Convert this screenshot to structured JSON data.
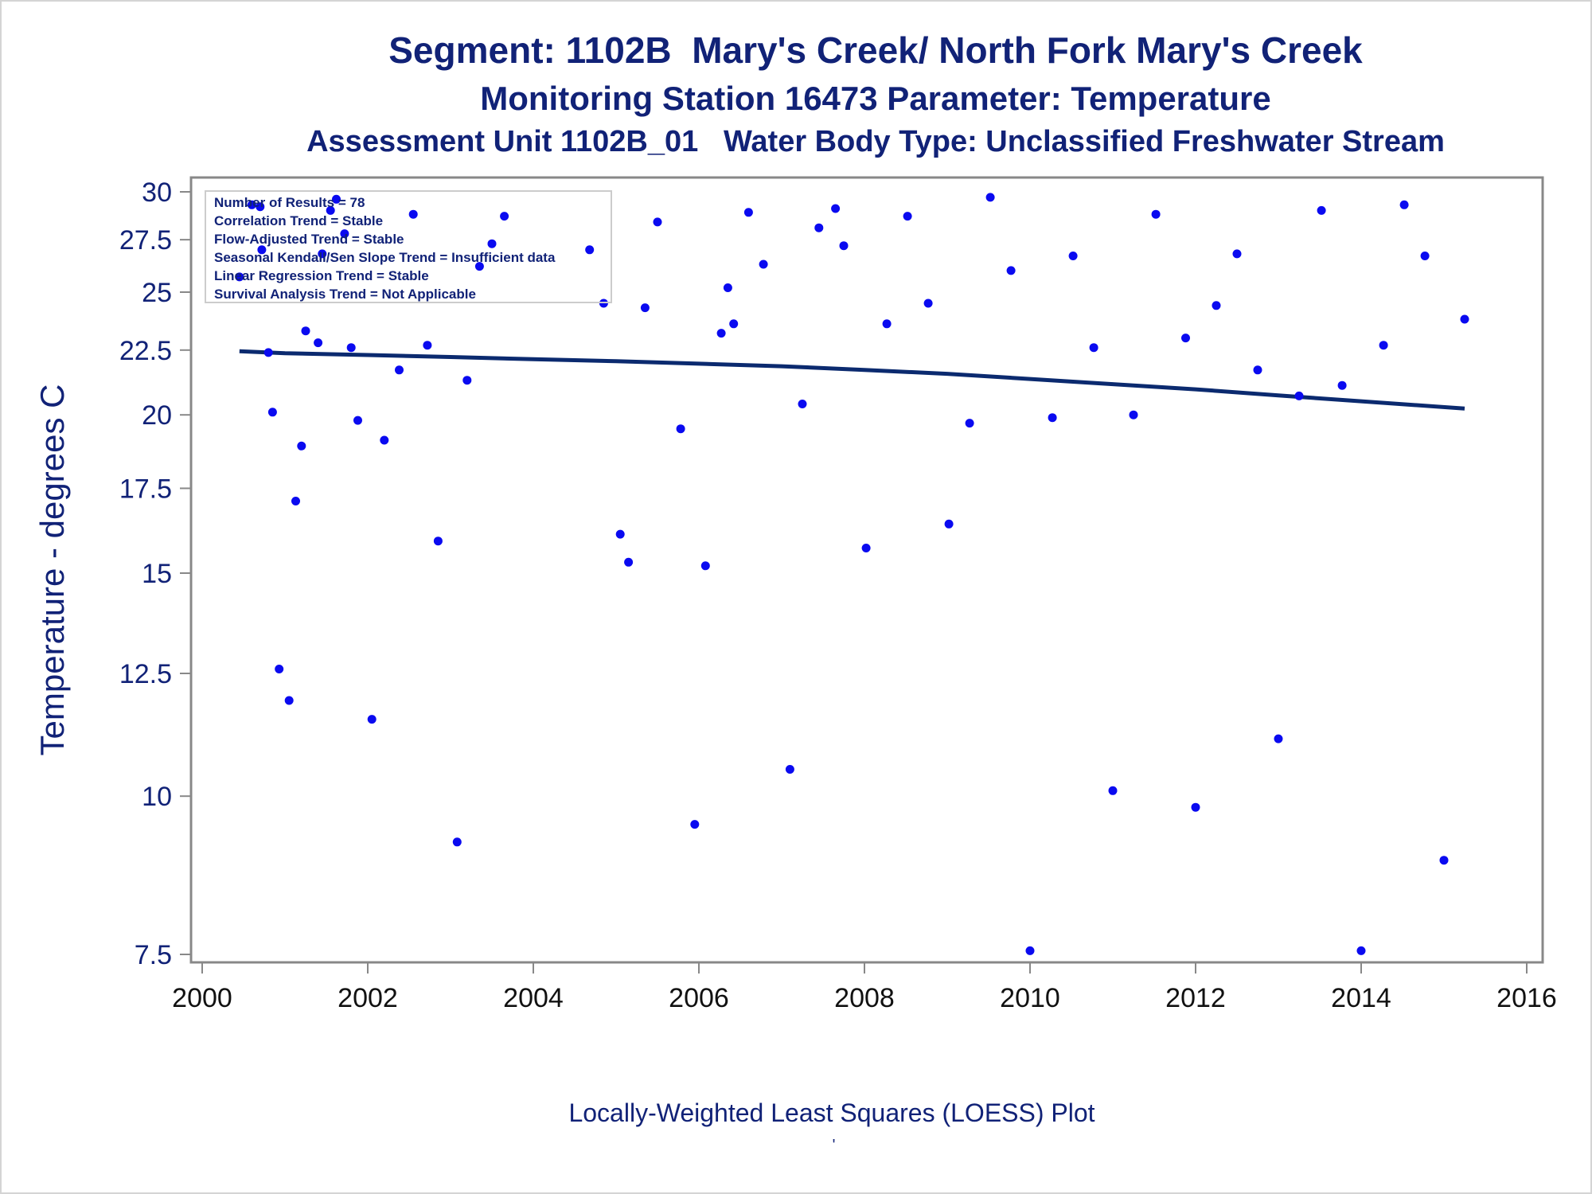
{
  "titles": {
    "line1": "Segment: 1102B  Mary's Creek/ North Fork Mary's Creek",
    "line2": "Monitoring Station 16473 Parameter: Temperature",
    "line3": "Assessment Unit 1102B_01   Water Body Type: Unclassified Freshwater Stream"
  },
  "footnote": "Locally-Weighted Least Squares (LOESS) Plot",
  "footnote_mark": "'",
  "colors": {
    "text": "#112277",
    "points": "#0a0af0",
    "loess": "#0b2a6f",
    "axis": "#888888"
  },
  "chart_data": {
    "type": "scatter",
    "ylabel": "Temperature - degrees C",
    "xlabel": "",
    "xlim": [
      2000,
      2016
    ],
    "ylim": [
      7.5,
      30
    ],
    "yscale": "log",
    "x_ticks": [
      2000,
      2002,
      2004,
      2006,
      2008,
      2010,
      2012,
      2014,
      2016
    ],
    "y_ticks": [
      7.5,
      10,
      12.5,
      15,
      17.5,
      20,
      22.5,
      25,
      27.5,
      30
    ],
    "y_tick_labels": [
      "7.5",
      "10",
      "12.5",
      "15",
      "17.5",
      "20",
      "22.5",
      "25",
      "27.5",
      "30"
    ],
    "grid": false,
    "legend_position": "top-left",
    "stats_box": [
      "Number of Results = 78",
      "Correlation Trend = Stable",
      "Flow-Adjusted Trend = Stable",
      "Seasonal Kendall/Sen Slope Trend = Insufficient data",
      "Linear Regression Trend = Stable",
      "Survival Analysis Trend = Not Applicable"
    ],
    "points": [
      [
        2000.45,
        25.7
      ],
      [
        2000.6,
        29.3
      ],
      [
        2000.7,
        29.2
      ],
      [
        2000.72,
        27.0
      ],
      [
        2000.8,
        22.4
      ],
      [
        2000.85,
        20.1
      ],
      [
        2000.93,
        12.6
      ],
      [
        2001.05,
        11.9
      ],
      [
        2001.13,
        17.1
      ],
      [
        2001.2,
        18.9
      ],
      [
        2001.25,
        23.3
      ],
      [
        2001.4,
        22.8
      ],
      [
        2001.45,
        26.8
      ],
      [
        2001.55,
        29.0
      ],
      [
        2001.62,
        29.6
      ],
      [
        2001.72,
        27.8
      ],
      [
        2001.8,
        22.6
      ],
      [
        2001.88,
        19.8
      ],
      [
        2002.05,
        11.5
      ],
      [
        2002.2,
        19.1
      ],
      [
        2002.38,
        21.7
      ],
      [
        2002.55,
        28.8
      ],
      [
        2002.72,
        22.7
      ],
      [
        2002.85,
        15.9
      ],
      [
        2003.08,
        9.2
      ],
      [
        2003.2,
        21.3
      ],
      [
        2003.35,
        26.2
      ],
      [
        2003.5,
        27.3
      ],
      [
        2003.65,
        28.7
      ],
      [
        2004.68,
        27.0
      ],
      [
        2004.85,
        24.5
      ],
      [
        2005.05,
        16.1
      ],
      [
        2005.15,
        15.3
      ],
      [
        2005.35,
        24.3
      ],
      [
        2005.5,
        28.4
      ],
      [
        2005.78,
        19.5
      ],
      [
        2005.95,
        9.5
      ],
      [
        2006.08,
        15.2
      ],
      [
        2006.27,
        23.2
      ],
      [
        2006.35,
        25.2
      ],
      [
        2006.42,
        23.6
      ],
      [
        2006.6,
        28.9
      ],
      [
        2006.78,
        26.3
      ],
      [
        2007.1,
        10.5
      ],
      [
        2007.25,
        20.4
      ],
      [
        2007.45,
        28.1
      ],
      [
        2007.65,
        29.1
      ],
      [
        2007.75,
        27.2
      ],
      [
        2008.02,
        15.7
      ],
      [
        2008.27,
        23.6
      ],
      [
        2008.52,
        28.7
      ],
      [
        2008.77,
        24.5
      ],
      [
        2009.02,
        16.4
      ],
      [
        2009.27,
        19.7
      ],
      [
        2009.52,
        29.7
      ],
      [
        2009.77,
        26.0
      ],
      [
        2010.0,
        7.55
      ],
      [
        2010.27,
        19.9
      ],
      [
        2010.52,
        26.7
      ],
      [
        2010.77,
        22.6
      ],
      [
        2011.0,
        10.1
      ],
      [
        2011.25,
        20.0
      ],
      [
        2011.52,
        28.8
      ],
      [
        2011.88,
        23.0
      ],
      [
        2012.0,
        9.8
      ],
      [
        2012.25,
        24.4
      ],
      [
        2012.5,
        26.8
      ],
      [
        2012.75,
        21.7
      ],
      [
        2013.0,
        11.1
      ],
      [
        2013.25,
        20.7
      ],
      [
        2013.52,
        29.0
      ],
      [
        2013.77,
        21.1
      ],
      [
        2014.0,
        7.55
      ],
      [
        2014.27,
        22.7
      ],
      [
        2014.52,
        29.3
      ],
      [
        2014.77,
        26.7
      ],
      [
        2015.0,
        8.9
      ],
      [
        2015.25,
        23.8
      ]
    ],
    "loess_line": [
      [
        2000.45,
        22.45
      ],
      [
        2001.0,
        22.37
      ],
      [
        2002.0,
        22.3
      ],
      [
        2003.0,
        22.22
      ],
      [
        2004.0,
        22.13
      ],
      [
        2005.0,
        22.05
      ],
      [
        2006.0,
        21.95
      ],
      [
        2007.0,
        21.85
      ],
      [
        2008.0,
        21.7
      ],
      [
        2009.0,
        21.55
      ],
      [
        2010.0,
        21.35
      ],
      [
        2011.0,
        21.15
      ],
      [
        2012.0,
        20.95
      ],
      [
        2013.0,
        20.72
      ],
      [
        2014.0,
        20.5
      ],
      [
        2015.25,
        20.23
      ]
    ]
  }
}
